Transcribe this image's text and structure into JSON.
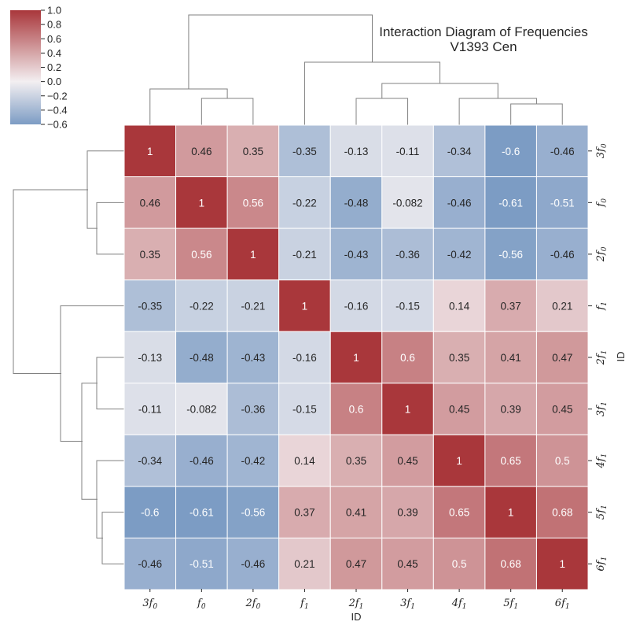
{
  "chart_data": {
    "type": "heatmap",
    "title": "Interaction Diagram of Frequencies",
    "subtitle": "V1393 Cen",
    "xlabel": "ID",
    "ylabel": "ID",
    "labels": [
      {
        "base": "3f",
        "sub": "0"
      },
      {
        "base": "f",
        "sub": "0"
      },
      {
        "base": "2f",
        "sub": "0"
      },
      {
        "base": "f",
        "sub": "1"
      },
      {
        "base": "2f",
        "sub": "1"
      },
      {
        "base": "3f",
        "sub": "1"
      },
      {
        "base": "4f",
        "sub": "1"
      },
      {
        "base": "5f",
        "sub": "1"
      },
      {
        "base": "6f",
        "sub": "1"
      }
    ],
    "values": [
      [
        1,
        0.46,
        0.35,
        -0.35,
        -0.13,
        -0.11,
        -0.34,
        -0.6,
        -0.46
      ],
      [
        0.46,
        1,
        0.56,
        -0.22,
        -0.48,
        -0.082,
        -0.46,
        -0.61,
        -0.51
      ],
      [
        0.35,
        0.56,
        1,
        -0.21,
        -0.43,
        -0.36,
        -0.42,
        -0.56,
        -0.46
      ],
      [
        -0.35,
        -0.22,
        -0.21,
        1,
        -0.16,
        -0.15,
        0.14,
        0.37,
        0.21
      ],
      [
        -0.13,
        -0.48,
        -0.43,
        -0.16,
        1,
        0.6,
        0.35,
        0.41,
        0.47
      ],
      [
        -0.11,
        -0.082,
        -0.36,
        -0.15,
        0.6,
        1,
        0.45,
        0.39,
        0.45
      ],
      [
        -0.34,
        -0.46,
        -0.42,
        0.14,
        0.35,
        0.45,
        1,
        0.65,
        0.5
      ],
      [
        -0.6,
        -0.61,
        -0.56,
        0.37,
        0.41,
        0.39,
        0.65,
        1,
        0.68
      ],
      [
        -0.46,
        -0.51,
        -0.46,
        0.21,
        0.47,
        0.45,
        0.5,
        0.68,
        1
      ]
    ],
    "colorbar": {
      "range": [
        -0.6,
        1.0
      ],
      "center": 0,
      "ticks": [
        "1.0",
        "0.8",
        "0.6",
        "0.4",
        "0.2",
        "0.0",
        "−0.2",
        "−0.4",
        "−0.6"
      ],
      "colors": {
        "low": "#7c9cc4",
        "mid": "#f3eff1",
        "high": "#a9373b"
      }
    },
    "dendrogram": "hierarchical clustering on rows and columns (same order)",
    "annotate": true
  }
}
